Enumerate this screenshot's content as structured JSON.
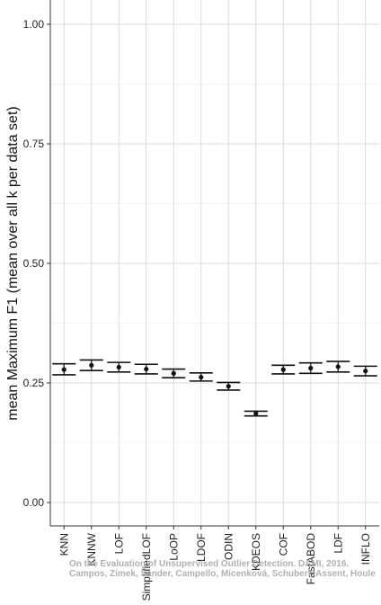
{
  "chart_data": {
    "type": "errorbar",
    "ylabel": "mean Maximum F1 (mean over all k per data set)",
    "xlabel": "",
    "ylim": [
      -0.05,
      1.05
    ],
    "yticks": [
      "0.00",
      "0.25",
      "0.50",
      "0.75",
      "1.00"
    ],
    "ytick_values": [
      0.0,
      0.25,
      0.5,
      0.75,
      1.0
    ],
    "grid": true,
    "categories": [
      "KNN",
      "KNNW",
      "LOF",
      "SimplifiedLOF",
      "LoOP",
      "LDOF",
      "ODIN",
      "KDEOS",
      "COF",
      "FastABOD",
      "LDF",
      "INFLO"
    ],
    "series": [
      {
        "mean": [
          0.278,
          0.287,
          0.283,
          0.279,
          0.27,
          0.262,
          0.243,
          0.186,
          0.278,
          0.281,
          0.284,
          0.275
        ],
        "lower": [
          0.267,
          0.276,
          0.273,
          0.269,
          0.261,
          0.254,
          0.235,
          0.181,
          0.269,
          0.27,
          0.273,
          0.265
        ],
        "upper": [
          0.29,
          0.298,
          0.293,
          0.289,
          0.279,
          0.271,
          0.251,
          0.191,
          0.287,
          0.292,
          0.295,
          0.285
        ]
      }
    ]
  },
  "watermark": {
    "line1": "On the Evaluation of Unsupervised Outlier Detection. DAMI, 2016.",
    "line2": "Campos, Zimek, Sander, Campello, Micenková, Schubert, Assent, Houle"
  }
}
